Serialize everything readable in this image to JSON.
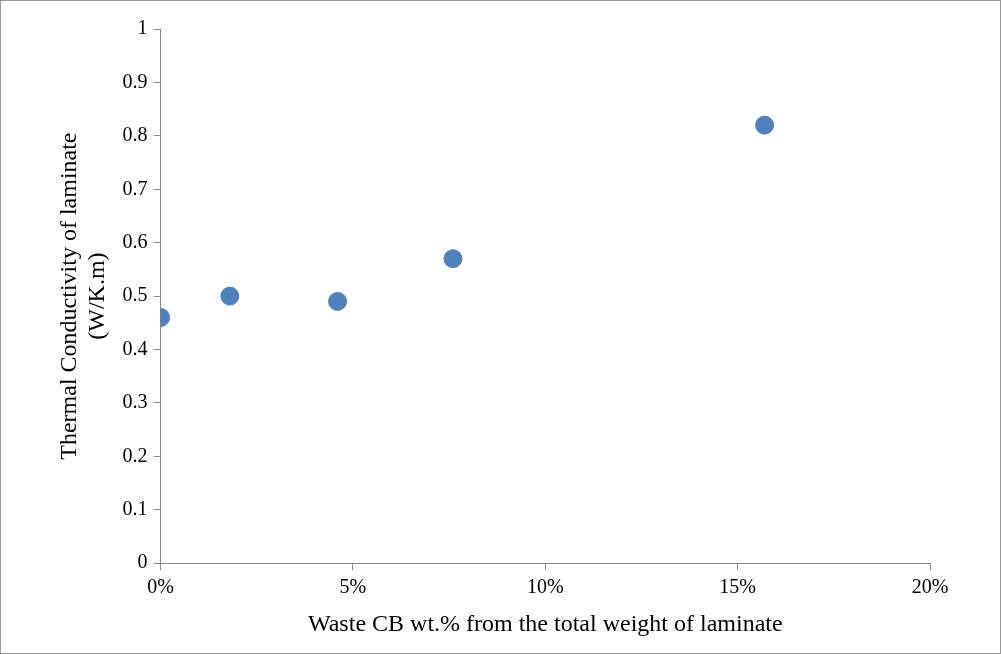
{
  "chart_data": {
    "type": "scatter",
    "xlabel": "Waste CB wt.% from the total weight of laminate",
    "ylabel": "Thermal Conductivity of laminate\n(W/K.m)",
    "x": [
      0,
      1.8,
      4.6,
      7.6,
      15.7
    ],
    "series": [
      {
        "color": "#4f81bd",
        "values": [
          0.46,
          0.5,
          0.49,
          0.57,
          0.82
        ]
      }
    ],
    "xlim": [
      0,
      20
    ],
    "xticks": [
      {
        "value": 0,
        "label": "0%"
      },
      {
        "value": 5,
        "label": "5%"
      },
      {
        "value": 10,
        "label": "10%"
      },
      {
        "value": 15,
        "label": "15%"
      },
      {
        "value": 20,
        "label": "20%"
      }
    ],
    "ylim": [
      0,
      1
    ],
    "yticks": [
      0,
      0.1,
      0.2,
      0.3,
      0.4,
      0.5,
      0.6,
      0.7,
      0.8,
      0.9,
      1
    ],
    "grid": false,
    "legend": false,
    "marker": "circle"
  }
}
